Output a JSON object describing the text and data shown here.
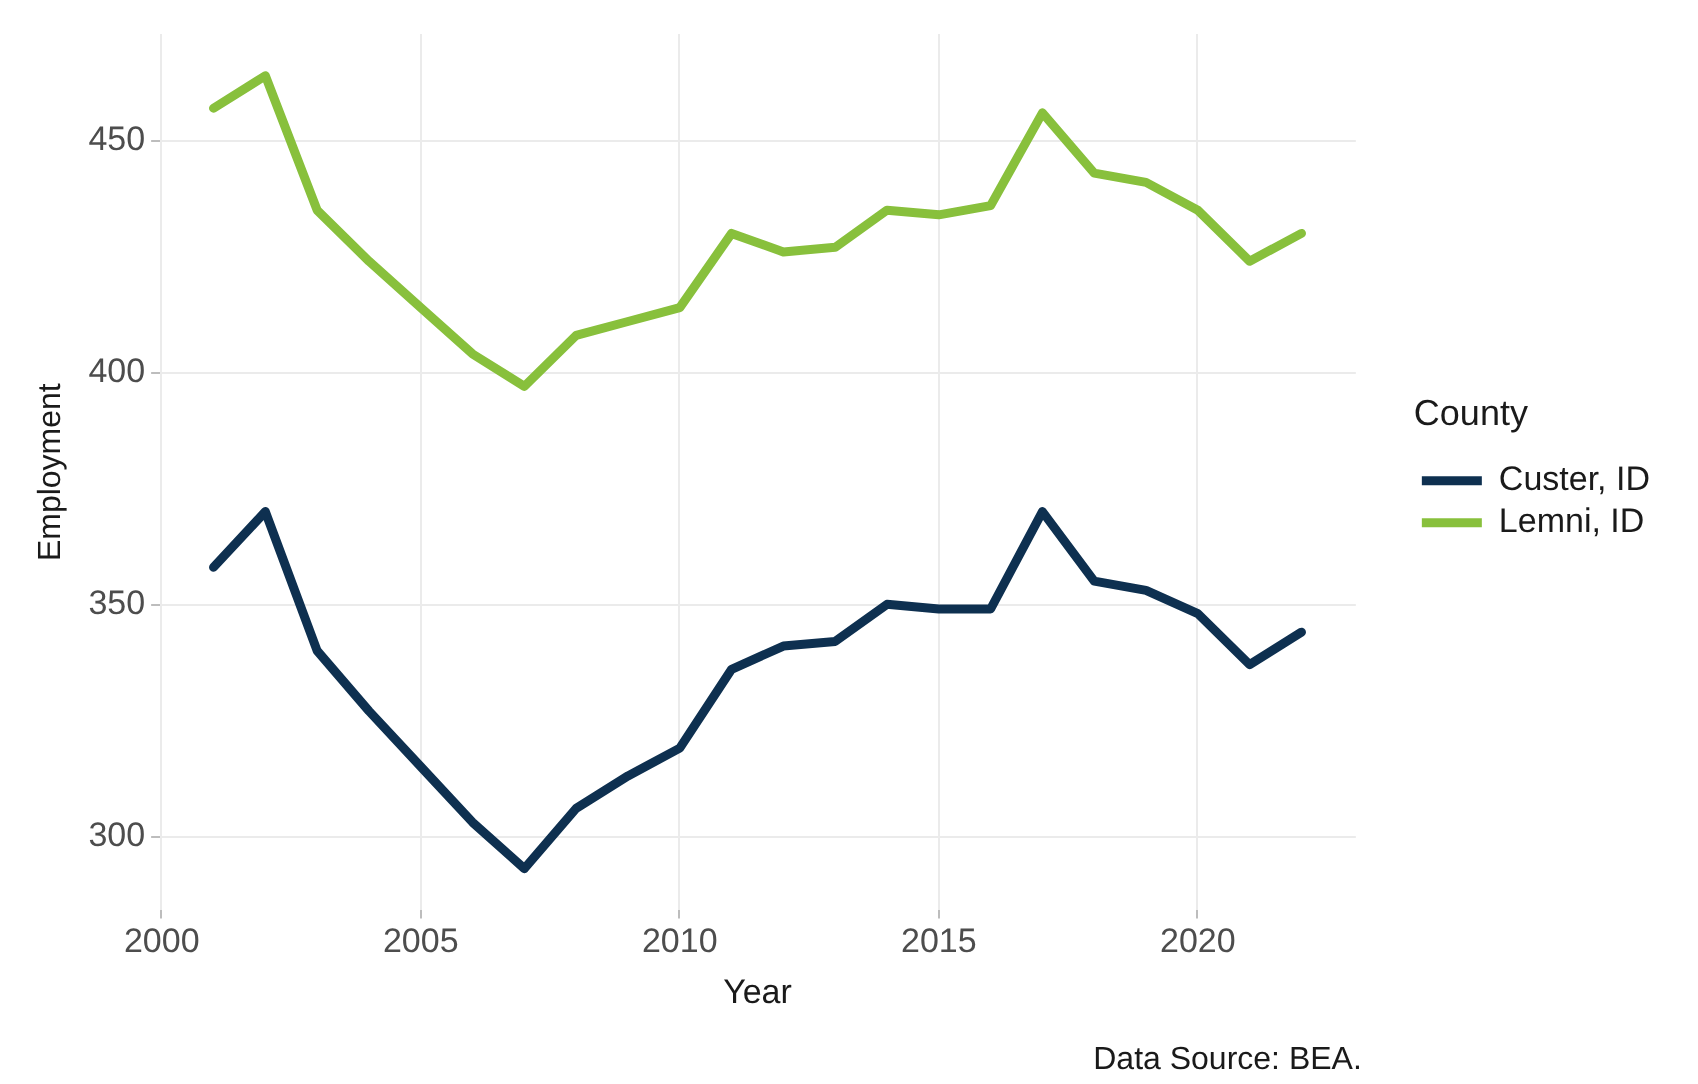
{
  "chart_data": {
    "type": "line",
    "xlabel": "Year",
    "ylabel": "Employment",
    "legend_title": "County",
    "annotations": [
      "Data Source: BEA."
    ],
    "x": [
      2001,
      2002,
      2003,
      2004,
      2005,
      2006,
      2007,
      2008,
      2009,
      2010,
      2011,
      2012,
      2013,
      2014,
      2015,
      2016,
      2017,
      2018,
      2019,
      2020,
      2021,
      2022
    ],
    "series": [
      {
        "name": "Custer, ID",
        "color": "#0e3050",
        "values": [
          358,
          370,
          340,
          327,
          315,
          303,
          293,
          306,
          313,
          319,
          336,
          341,
          342,
          350,
          349,
          349,
          370,
          355,
          353,
          348,
          337,
          344
        ]
      },
      {
        "name": "Lemni, ID",
        "color": "#88c03c",
        "values": [
          457,
          464,
          435,
          424,
          414,
          404,
          397,
          408,
          411,
          414,
          430,
          426,
          427,
          435,
          434,
          436,
          456,
          443,
          441,
          435,
          424,
          430
        ]
      }
    ],
    "xlim": [
      1999.95,
      2023.05
    ],
    "ylim": [
      284,
      473
    ],
    "xticks": [
      2000,
      2005,
      2010,
      2015,
      2020
    ],
    "yticks": [
      300,
      350,
      400,
      450
    ],
    "grid": true,
    "legend": "right",
    "marker": "none",
    "line_style": "solid"
  }
}
